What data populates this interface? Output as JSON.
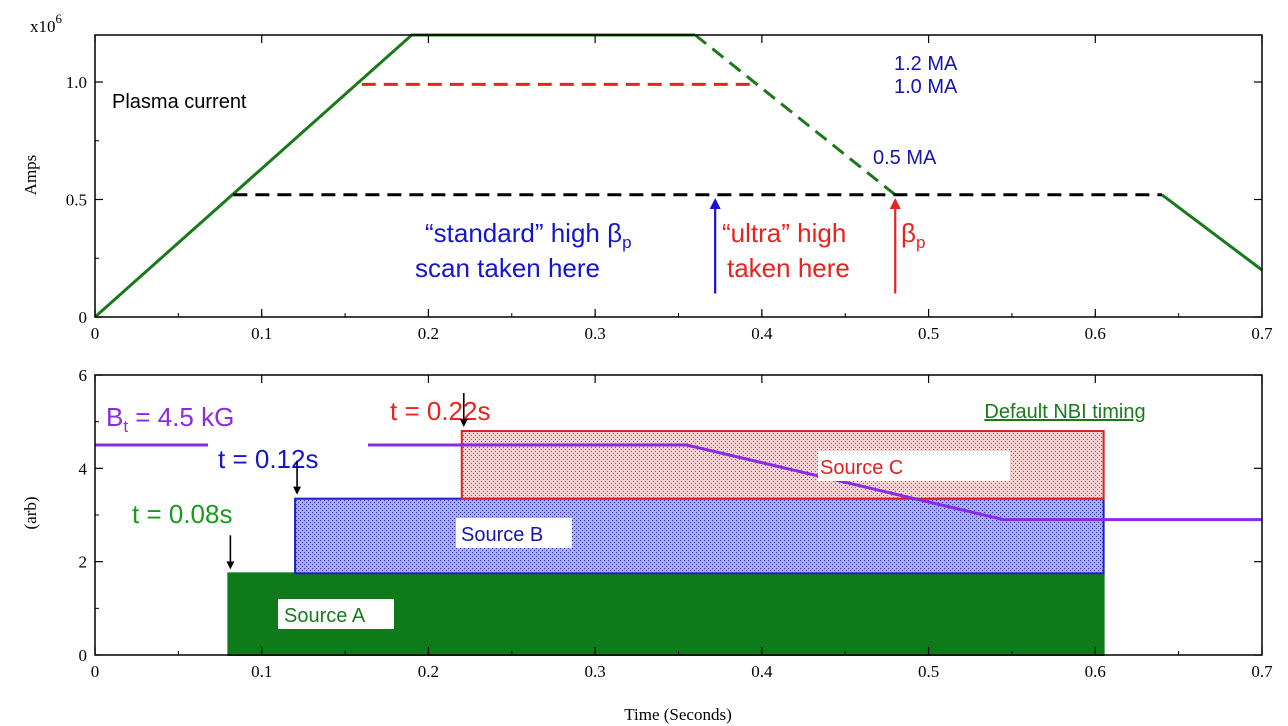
{
  "chart_data": [
    {
      "type": "line",
      "ylabel": "Amps",
      "y_multiplier": "x10",
      "y_multiplier_exp": "6",
      "xlim": [
        0,
        0.7
      ],
      "ylim": [
        0,
        1.2
      ],
      "x_ticks": [
        "0",
        "0.1",
        "0.2",
        "0.3",
        "0.4",
        "0.5",
        "0.6",
        "0.7"
      ],
      "y_ticks": [
        "0",
        "0.5",
        "1.0"
      ],
      "grid": false,
      "series": [
        {
          "name": "1.2 MA",
          "color": "#1a7a1a",
          "style": "solid",
          "x": [
            0,
            0.19,
            0.36
          ],
          "y": [
            0,
            1.2,
            1.2
          ]
        },
        {
          "name": "1.2 MA",
          "color": "#1a7a1a",
          "style": "dashed",
          "x": [
            0.36,
            0.48
          ],
          "y": [
            1.2,
            0.52
          ]
        },
        {
          "name": "0.5 MA",
          "color": "#1a7a1a",
          "style": "solid",
          "x": [
            0.64,
            0.7
          ],
          "y": [
            0.52,
            0.2
          ]
        },
        {
          "name": "1.0 MA",
          "color": "#e8231f",
          "style": "dashed",
          "x": [
            0.16,
            0.395
          ],
          "y": [
            0.99,
            0.99
          ]
        },
        {
          "name": "0.5 MA",
          "color": "#000000",
          "style": "dashed",
          "x": [
            0.083,
            0.64
          ],
          "y": [
            0.52,
            0.52
          ]
        }
      ],
      "annotations": {
        "plasma_current": "Plasma current",
        "ma_1_2": "1.2 MA",
        "ma_1_0": "1.0 MA",
        "ma_0_5": "0.5 MA",
        "standard_line1": "“standard” high β",
        "standard_sub": "p",
        "standard_line2": "scan taken here",
        "ultra_line1": "“ultra” high",
        "ultra_beta": "β",
        "ultra_sub": "p",
        "ultra_line2": "taken here"
      },
      "arrows": [
        {
          "x": 0.372,
          "y_from": 0.1,
          "y_to": 0.5,
          "color": "#1515d0"
        },
        {
          "x": 0.48,
          "y_from": 0.1,
          "y_to": 0.5,
          "color": "#e8231f"
        }
      ]
    },
    {
      "type": "area",
      "xlabel": "Time (Seconds)",
      "ylabel": "(arb)",
      "xlim": [
        0,
        0.7
      ],
      "ylim": [
        0,
        6
      ],
      "x_ticks": [
        "0",
        "0.1",
        "0.2",
        "0.3",
        "0.4",
        "0.5",
        "0.6",
        "0.7"
      ],
      "y_ticks": [
        "0",
        "2",
        "4",
        "6"
      ],
      "grid": false,
      "sources": [
        {
          "label": "Source A",
          "x_start": 0.08,
          "x_end": 0.605,
          "y_bottom": 0,
          "y_top": 1.75,
          "color": "#0f7a1a",
          "start_label": "t = 0.08s"
        },
        {
          "label": "Source B",
          "x_start": 0.12,
          "x_end": 0.605,
          "y_bottom": 1.75,
          "y_top": 3.35,
          "color": "#2020c8",
          "start_label": "t = 0.12s"
        },
        {
          "label": "Source C",
          "x_start": 0.22,
          "x_end": 0.605,
          "y_bottom": 3.35,
          "y_top": 4.8,
          "color": "#e02020",
          "start_label": "t = 0.22s"
        }
      ],
      "bt_line": {
        "label": "B",
        "label_sub": "t",
        "label_rest": " = 4.5 kG",
        "color": "#8a2be2",
        "x": [
          0,
          0.355,
          0.545,
          0.7
        ],
        "y": [
          4.5,
          4.5,
          2.9,
          2.9
        ]
      },
      "legend_text": "Default NBI timing"
    }
  ]
}
